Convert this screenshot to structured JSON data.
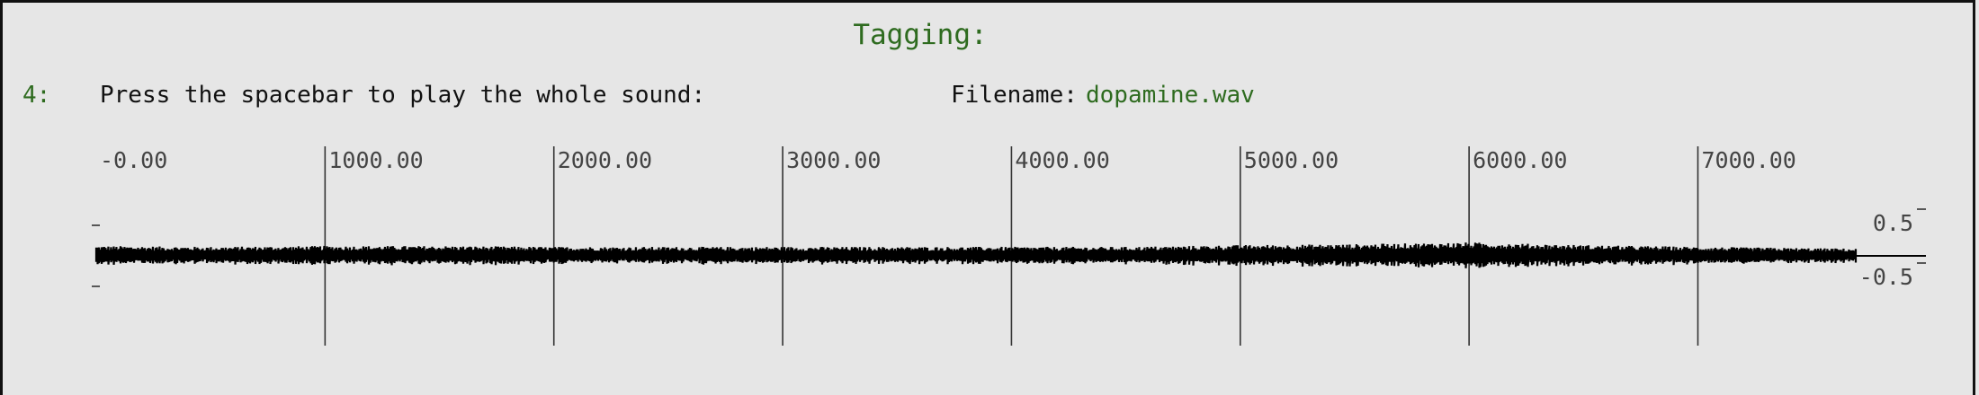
{
  "header": {
    "title": "Tagging:",
    "step_number": "4:",
    "instruction": "Press the spacebar to play the whole sound:",
    "filename_label": "Filename:",
    "filename": "dopamine.wav"
  },
  "chart_data": {
    "type": "line",
    "x_ticks": [
      "-0.00",
      "1000.00",
      "2000.00",
      "3000.00",
      "4000.00",
      "5000.00",
      "6000.00",
      "7000.00"
    ],
    "x_tick_values": [
      0,
      1000,
      2000,
      3000,
      4000,
      5000,
      6000,
      7000
    ],
    "xlim": [
      0,
      7690
    ],
    "y_ticks": [
      "0.5",
      "-0.5"
    ],
    "y_tick_values": [
      0.5,
      -0.5
    ],
    "ylim": [
      -1,
      1
    ],
    "grid": true,
    "series": [
      {
        "amplitude_envelope_x": [
          0,
          500,
          1000,
          1500,
          2000,
          2500,
          3000,
          3500,
          4000,
          4500,
          5000,
          5500,
          6000,
          6500,
          7000,
          7690
        ],
        "amplitude_envelope": [
          0.11,
          0.1,
          0.11,
          0.11,
          0.1,
          0.1,
          0.1,
          0.1,
          0.1,
          0.1,
          0.12,
          0.13,
          0.15,
          0.12,
          0.1,
          0.08
        ]
      }
    ],
    "colors": {
      "waveform": "#000000",
      "grid": "#333333",
      "tick_text": "#444444"
    }
  },
  "colors": {
    "accent": "#2e6b1f",
    "text": "#111111",
    "background": "#e6e6e6"
  }
}
